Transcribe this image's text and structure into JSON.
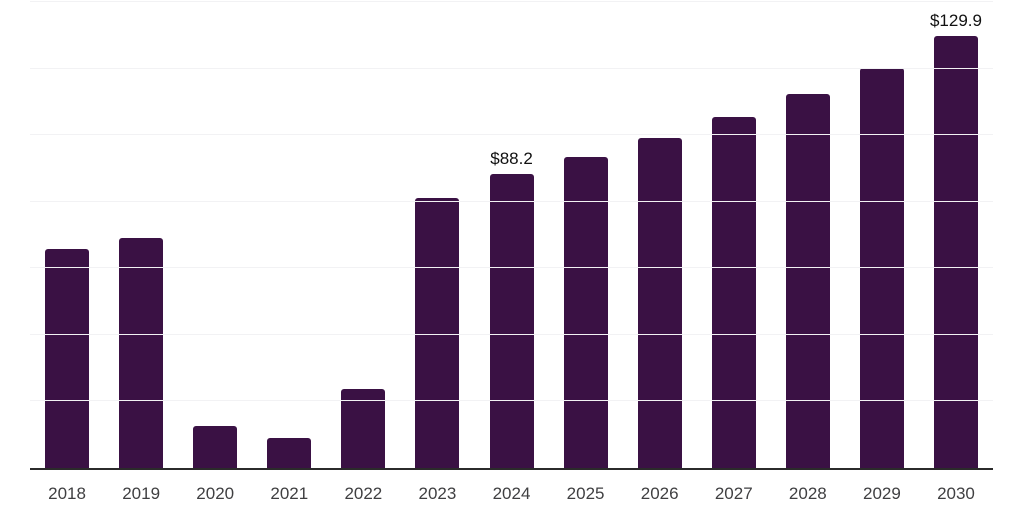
{
  "chart_data": {
    "type": "bar",
    "title": "",
    "xlabel": "",
    "ylabel": "",
    "categories": [
      "2018",
      "2019",
      "2020",
      "2021",
      "2022",
      "2023",
      "2024",
      "2025",
      "2026",
      "2027",
      "2028",
      "2029",
      "2030"
    ],
    "values": [
      65.7,
      69.0,
      12.6,
      9.0,
      23.7,
      81.0,
      88.2,
      93.3,
      99.0,
      105.6,
      112.5,
      120.3,
      129.9
    ],
    "data_labels": [
      "",
      "",
      "",
      "",
      "",
      "",
      "$88.2",
      "",
      "",
      "",
      "",
      "",
      "$129.9"
    ],
    "ylim": [
      0,
      140
    ],
    "gridline_step": 20,
    "grid": "horizontal-only",
    "legend": "none",
    "colors": {
      "bar": "#3a1144",
      "axis_line": "#2b2b2b",
      "gridline": "#f2f2f4",
      "value_label": "#111111",
      "tick_label": "#3f3f41",
      "background": "#ffffff"
    }
  }
}
